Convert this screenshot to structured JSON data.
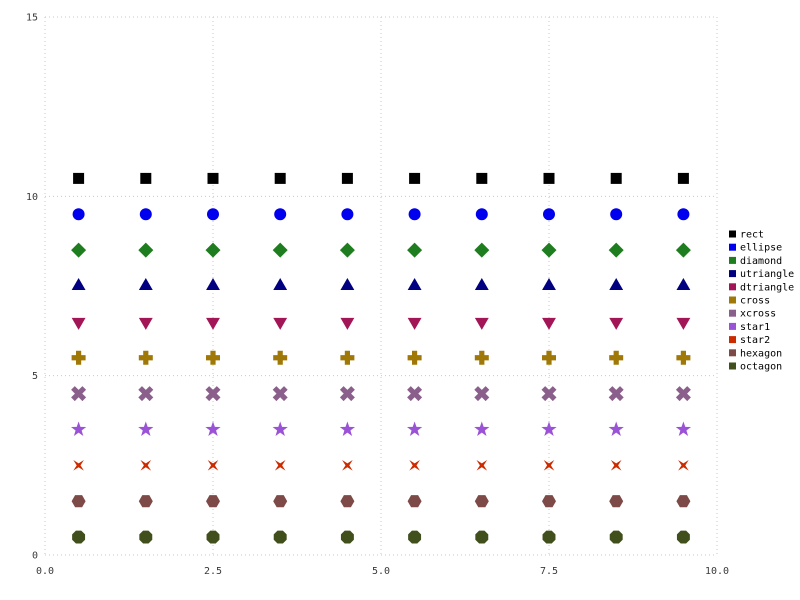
{
  "chart_data": {
    "type": "scatter",
    "title": "",
    "xlabel": "",
    "ylabel": "",
    "x": [
      0.5,
      1.5,
      2.5,
      3.5,
      4.5,
      5.5,
      6.5,
      7.5,
      8.5,
      9.5
    ],
    "series": [
      {
        "name": "rect",
        "marker": "rect",
        "color": "#000000",
        "y": 10.5
      },
      {
        "name": "ellipse",
        "marker": "ellipse",
        "color": "#0000ee",
        "y": 9.5
      },
      {
        "name": "diamond",
        "marker": "diamond",
        "color": "#1e7d1e",
        "y": 8.5
      },
      {
        "name": "utriangle",
        "marker": "utriangle",
        "color": "#000080",
        "y": 7.5
      },
      {
        "name": "dtriangle",
        "marker": "dtriangle",
        "color": "#a21556",
        "y": 6.5
      },
      {
        "name": "cross",
        "marker": "cross",
        "color": "#a07807",
        "y": 5.5
      },
      {
        "name": "xcross",
        "marker": "xcross",
        "color": "#8b5f8b",
        "y": 4.5
      },
      {
        "name": "star1",
        "marker": "star1",
        "color": "#9a52d6",
        "y": 3.5
      },
      {
        "name": "star2",
        "marker": "star2",
        "color": "#cc2b00",
        "y": 2.5
      },
      {
        "name": "hexagon",
        "marker": "hexagon",
        "color": "#7e4a47",
        "y": 1.5
      },
      {
        "name": "octagon",
        "marker": "octagon",
        "color": "#404f1c",
        "y": 0.5
      }
    ],
    "xlim": [
      0,
      10
    ],
    "ylim": [
      0,
      15
    ],
    "xticks": {
      "values": [
        0,
        2.5,
        5,
        7.5,
        10
      ],
      "labels": [
        "0.0",
        "2.5",
        "5.0",
        "7.5",
        "10.0"
      ]
    },
    "yticks": {
      "values": [
        0,
        5,
        10,
        15
      ],
      "labels": [
        "0",
        "5",
        "10",
        "15"
      ]
    },
    "grid": true,
    "legend_position": "right",
    "legend_entries": [
      "rect",
      "ellipse",
      "diamond",
      "utriangle",
      "dtriangle",
      "cross",
      "xcross",
      "star1",
      "star2",
      "hexagon",
      "octagon"
    ],
    "background_color": "#ffffff",
    "grid_color": "#c9c9c9",
    "tick_label_color": "#3a3a3a",
    "legend_text_color": "#000000"
  }
}
